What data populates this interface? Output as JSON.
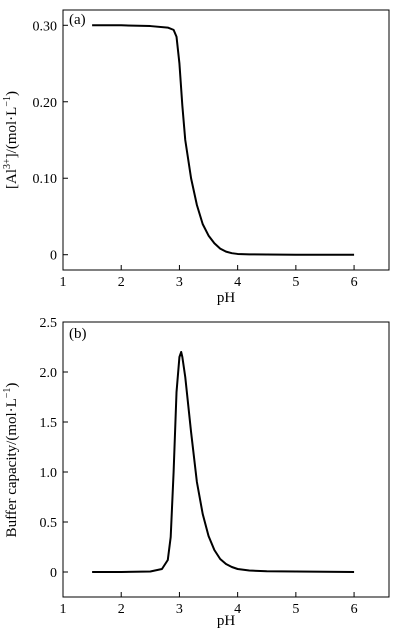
{
  "chart_data": [
    {
      "type": "line",
      "panel_label": "(a)",
      "title": "",
      "xlabel": "pH",
      "ylabel_main": "[Al",
      "ylabel_sup": "3+",
      "ylabel_rest": "]/(mol·L",
      "ylabel_sup2": "−1",
      "ylabel_end": ")",
      "xlim": [
        1,
        6.6
      ],
      "ylim": [
        -0.02,
        0.32
      ],
      "xticks": [
        1,
        2,
        3,
        4,
        5,
        6
      ],
      "xtick_labels": [
        "1",
        "2",
        "3",
        "4",
        "5",
        "6"
      ],
      "yticks": [
        0,
        0.1,
        0.2,
        0.3
      ],
      "ytick_labels": [
        "0",
        "0.10",
        "0.20",
        "0.30"
      ],
      "grid": false,
      "series": [
        {
          "x": [
            1.5,
            2.0,
            2.5,
            2.8,
            2.9,
            2.95,
            3.0,
            3.05,
            3.1,
            3.2,
            3.3,
            3.4,
            3.5,
            3.6,
            3.7,
            3.8,
            3.9,
            4.0,
            4.2,
            4.5,
            5.0,
            6.0
          ],
          "y": [
            0.3,
            0.3,
            0.299,
            0.297,
            0.294,
            0.285,
            0.25,
            0.195,
            0.15,
            0.1,
            0.065,
            0.04,
            0.025,
            0.015,
            0.008,
            0.004,
            0.002,
            0.001,
            0.0005,
            0.0002,
            0.0,
            0.0
          ]
        }
      ]
    },
    {
      "type": "line",
      "panel_label": "(b)",
      "title": "",
      "xlabel": "pH",
      "ylabel_main": "Buffer capacity/(mol·L",
      "ylabel_sup": "−1",
      "ylabel_end": ")",
      "xlim": [
        1,
        6.6
      ],
      "ylim": [
        -0.25,
        2.5
      ],
      "xticks": [
        1,
        2,
        3,
        4,
        5,
        6
      ],
      "xtick_labels": [
        "1",
        "2",
        "3",
        "4",
        "5",
        "6"
      ],
      "yticks": [
        0,
        0.5,
        1.0,
        1.5,
        2.0,
        2.5
      ],
      "ytick_labels": [
        "0",
        "0.5",
        "1.0",
        "1.5",
        "2.0",
        "2.5"
      ],
      "grid": false,
      "series": [
        {
          "x": [
            1.5,
            2.0,
            2.5,
            2.7,
            2.8,
            2.85,
            2.9,
            2.95,
            3.0,
            3.03,
            3.05,
            3.1,
            3.2,
            3.3,
            3.4,
            3.5,
            3.6,
            3.7,
            3.8,
            3.9,
            4.0,
            4.2,
            4.5,
            5.0,
            5.5,
            6.0
          ],
          "y": [
            0.0,
            0.0,
            0.005,
            0.03,
            0.12,
            0.35,
            1.0,
            1.8,
            2.15,
            2.2,
            2.15,
            1.95,
            1.4,
            0.9,
            0.58,
            0.36,
            0.22,
            0.13,
            0.08,
            0.05,
            0.03,
            0.015,
            0.008,
            0.005,
            0.003,
            0.0
          ]
        }
      ]
    }
  ]
}
